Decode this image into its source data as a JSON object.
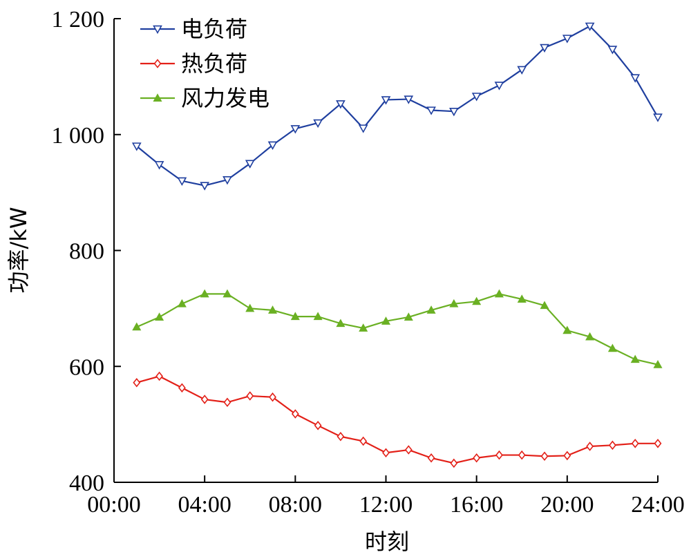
{
  "chart_data": {
    "type": "line",
    "xlabel": "时刻",
    "ylabel": "功率/kW",
    "x_tick_labels": [
      "00:00",
      "04:00",
      "08:00",
      "12:00",
      "16:00",
      "20:00",
      "24:00"
    ],
    "y_tick_labels": [
      "400",
      "600",
      "800",
      "1 000",
      "1 200"
    ],
    "y_ticks": [
      400,
      600,
      800,
      1000,
      1200
    ],
    "xlim": [
      0,
      24
    ],
    "ylim": [
      400,
      1200
    ],
    "grid": false,
    "legend_position": "top-left",
    "x": [
      1,
      2,
      3,
      4,
      5,
      6,
      7,
      8,
      9,
      10,
      11,
      12,
      13,
      14,
      15,
      16,
      17,
      18,
      19,
      20,
      21,
      22,
      23,
      24
    ],
    "series": [
      {
        "name": "电负荷",
        "color": "#1f3f9f",
        "marker": "triangle-down",
        "values": [
          980,
          948,
          920,
          912,
          922,
          950,
          982,
          1010,
          1020,
          1053,
          1011,
          1060,
          1061,
          1042,
          1040,
          1066,
          1085,
          1112,
          1150,
          1166,
          1187,
          1147,
          1098,
          1030
        ]
      },
      {
        "name": "热负荷",
        "color": "#e32018",
        "marker": "diamond",
        "values": [
          572,
          583,
          563,
          543,
          538,
          549,
          547,
          518,
          498,
          479,
          471,
          451,
          456,
          442,
          433,
          442,
          447,
          447,
          445,
          446,
          462,
          464,
          467,
          467
        ]
      },
      {
        "name": "风力发电",
        "color": "#6ab023",
        "marker": "triangle-up",
        "values": [
          668,
          685,
          708,
          725,
          725,
          700,
          697,
          686,
          686,
          674,
          666,
          678,
          685,
          697,
          708,
          712,
          725,
          716,
          705,
          662,
          651,
          631,
          612,
          603
        ]
      }
    ]
  }
}
